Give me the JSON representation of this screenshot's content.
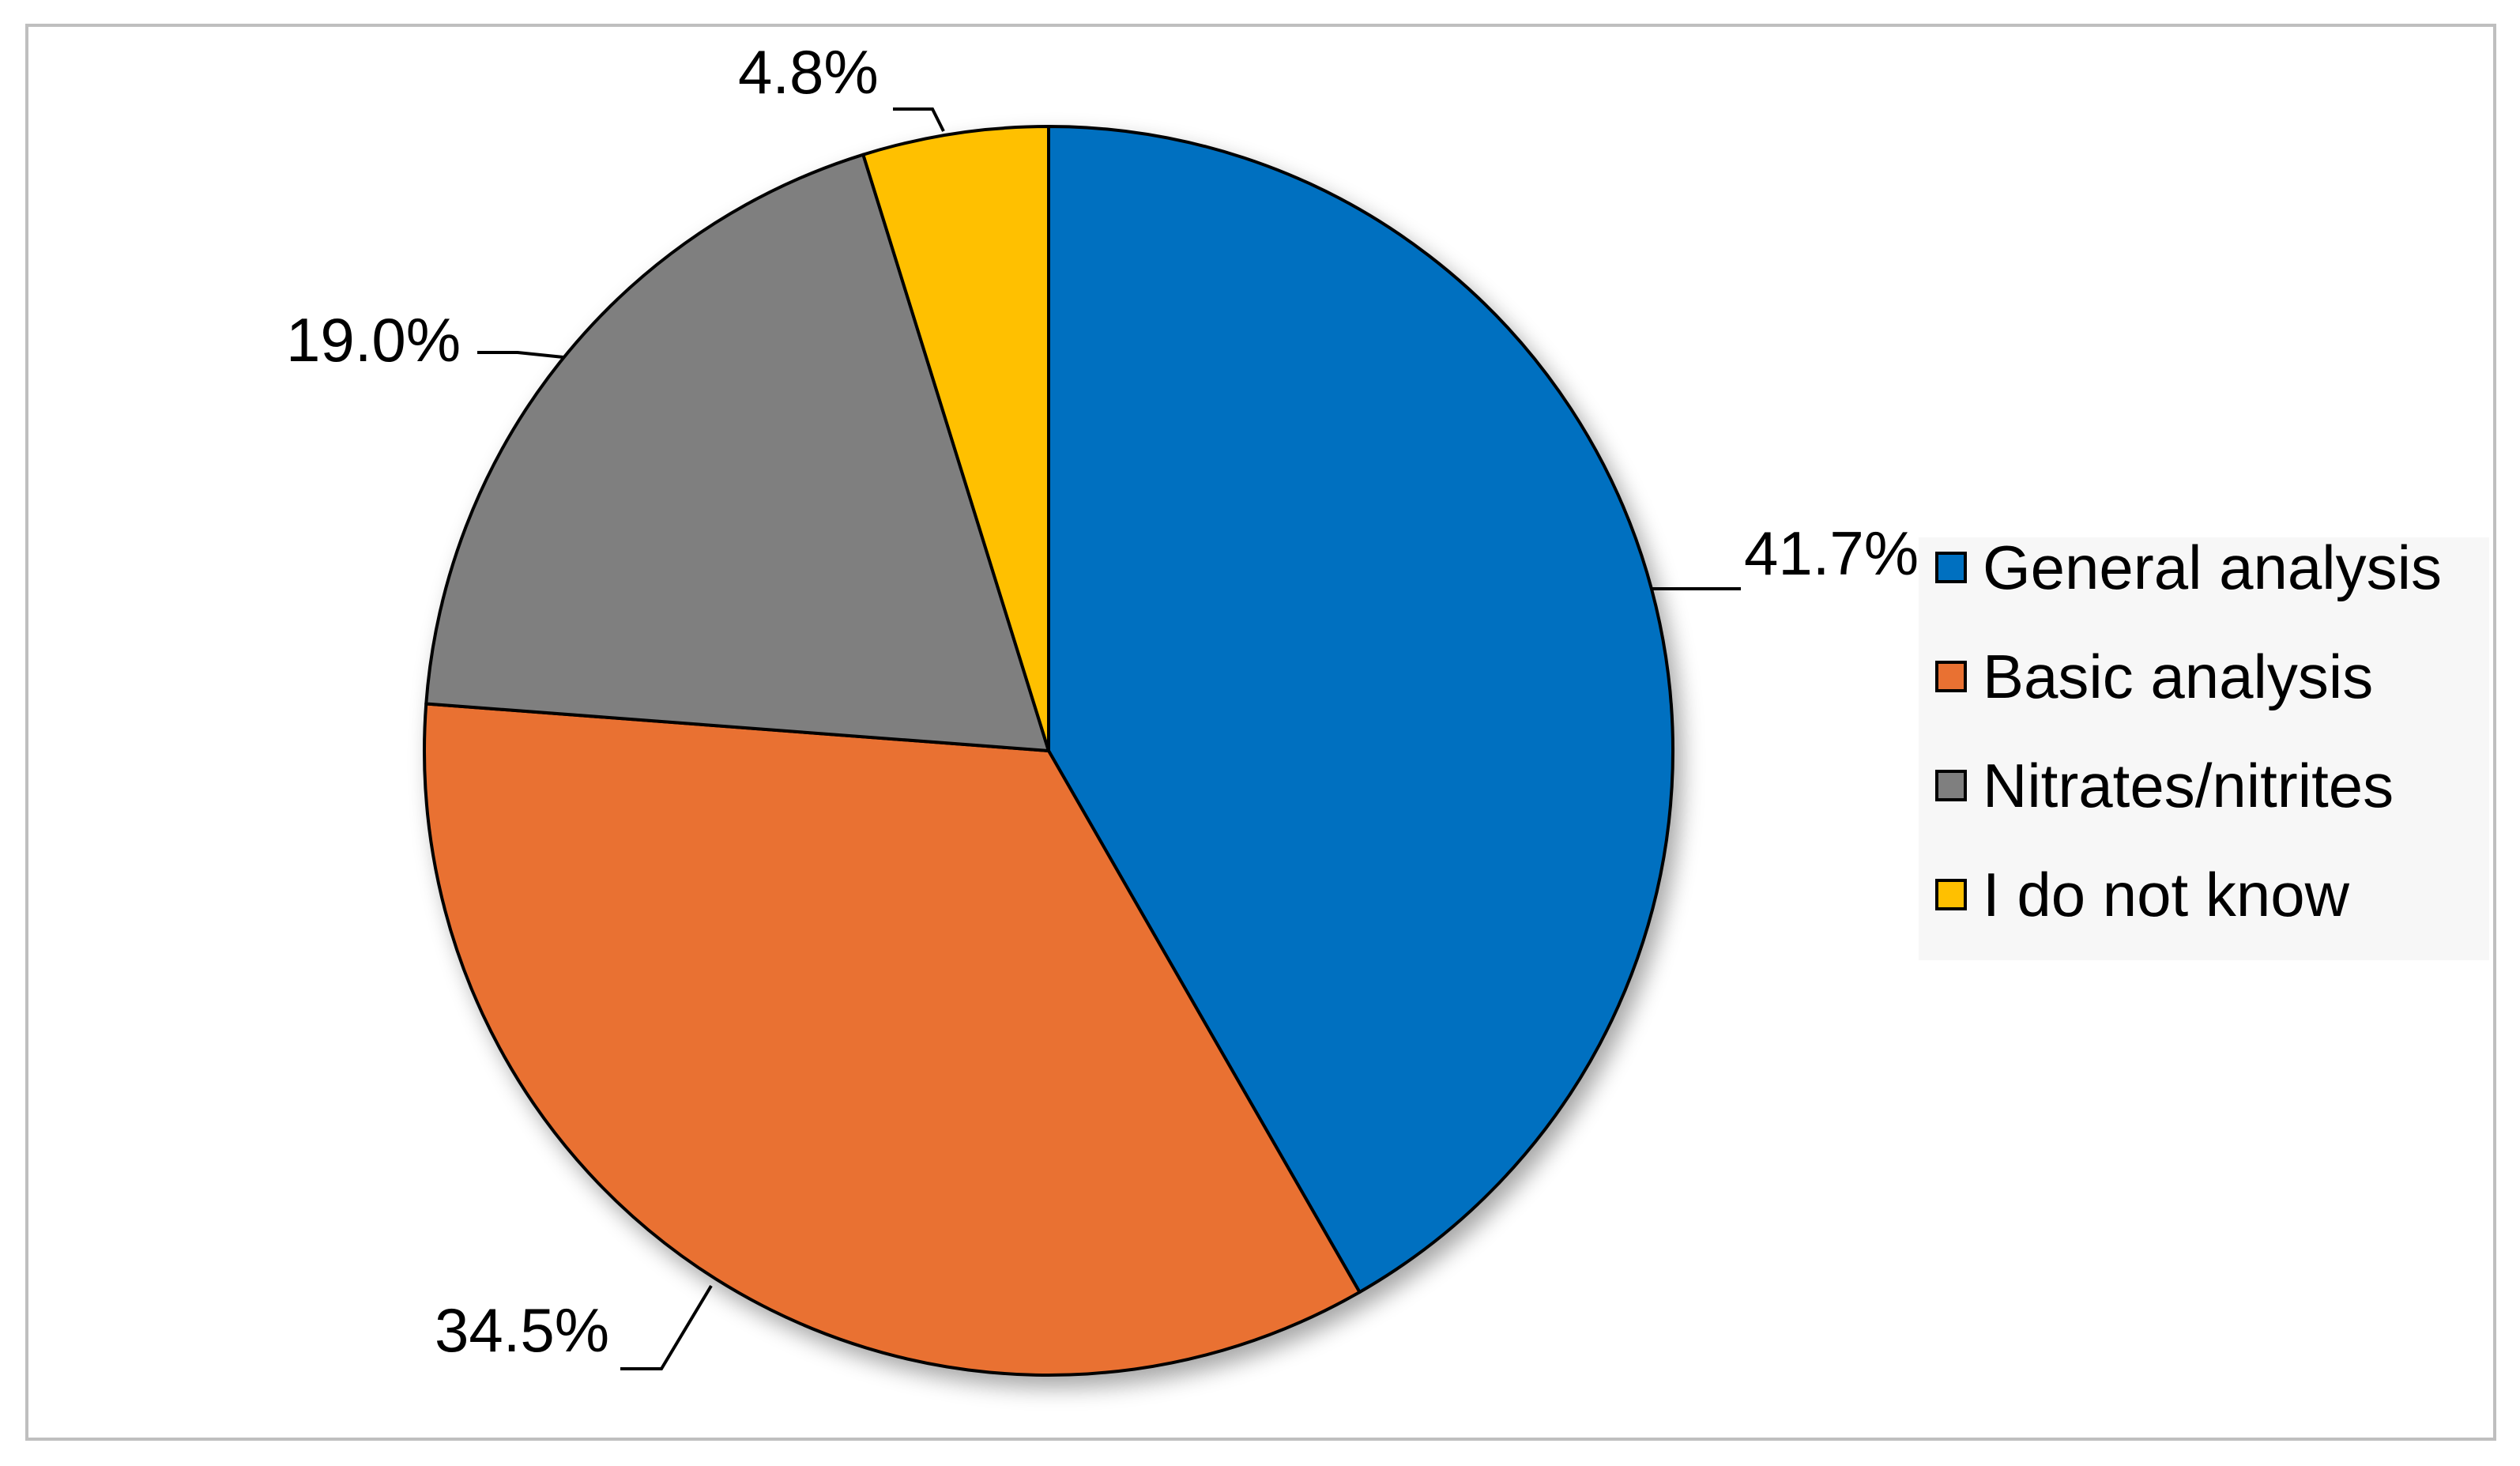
{
  "chart_data": {
    "type": "pie",
    "title": "",
    "series": [
      {
        "values": [
          41.7,
          34.5,
          19.0,
          4.8
        ],
        "categories": [
          "General analysis",
          "Basic analysis",
          "Nitrates/nitrites",
          "I do not know"
        ]
      }
    ],
    "categories": [
      "General analysis",
      "Basic analysis",
      "Nitrates/nitrites",
      "I do not know"
    ],
    "values": [
      41.7,
      34.5,
      19.0,
      4.8
    ],
    "data_labels": [
      "41.7%",
      "34.5%",
      "19.0%",
      "4.8%"
    ],
    "colors": [
      "#0070c0",
      "#e97132",
      "#7f7f7f",
      "#ffc000"
    ],
    "legend": {
      "position": "right",
      "entries": [
        "General analysis",
        "Basic analysis",
        "Nitrates/nitrites",
        "I do not know"
      ]
    },
    "start_angle": "12 o'clock",
    "direction": "clockwise"
  }
}
